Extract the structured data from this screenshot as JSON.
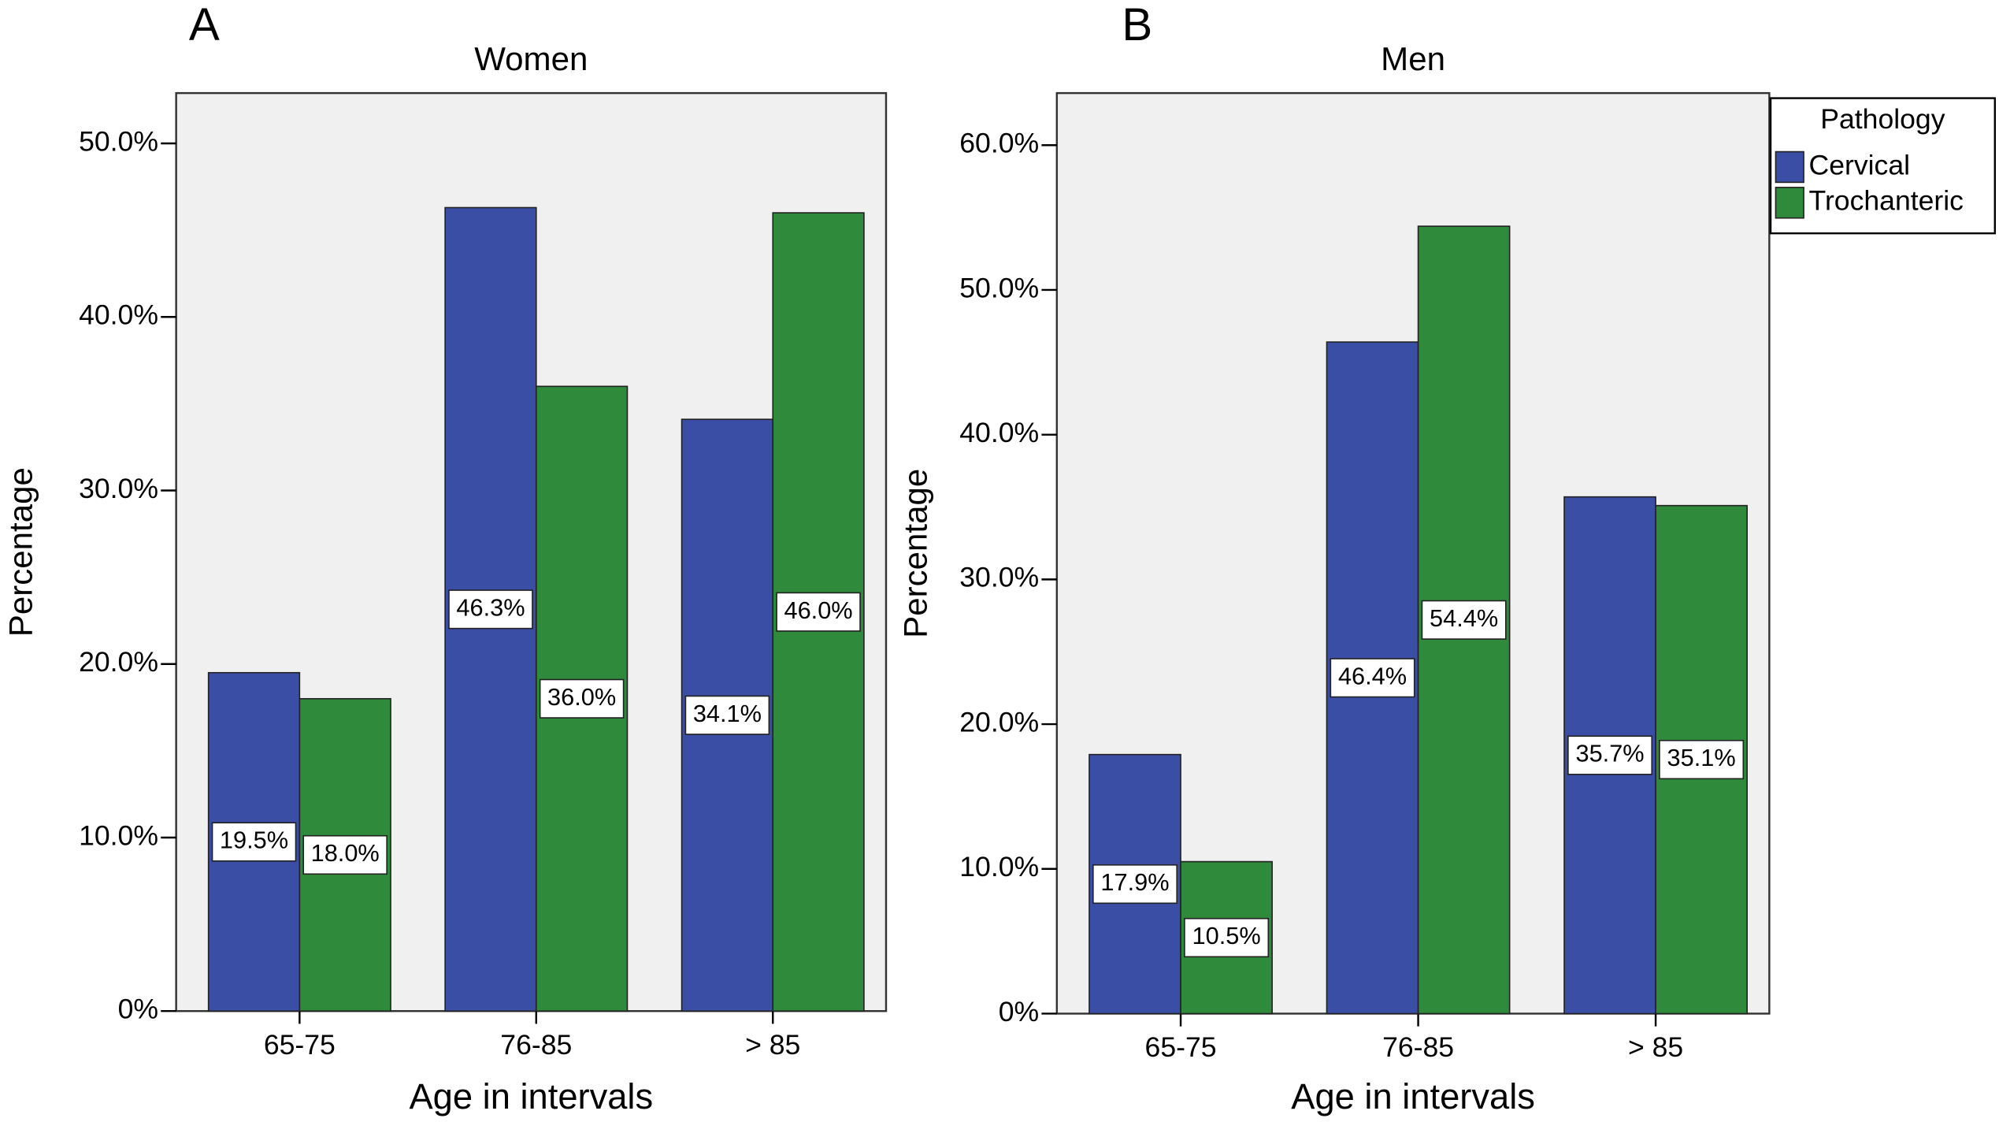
{
  "chart_data": [
    {
      "type": "bar",
      "panel": "A",
      "title": "Women",
      "xlabel": "Age in intervals",
      "ylabel": "Percentage",
      "categories": [
        "65-75",
        "76-85",
        "> 85"
      ],
      "series": [
        {
          "color": "#3b4ea6",
          "values": [
            19.5,
            46.3,
            34.1
          ],
          "value_labels": [
            "19.5%",
            "46.3%",
            "34.1%"
          ]
        },
        {
          "color": "#2f8b3b",
          "values": [
            18.0,
            36.0,
            46.0
          ],
          "value_labels": [
            "18.0%",
            "36.0%",
            "46.0%"
          ]
        }
      ],
      "ylim": [
        0,
        52.9
      ],
      "yticks": [
        {
          "value": 0,
          "label": "0%"
        },
        {
          "value": 10,
          "label": "10.0%"
        },
        {
          "value": 20,
          "label": "20.0%"
        },
        {
          "value": 30,
          "label": "30.0%"
        },
        {
          "value": 40,
          "label": "40.0%"
        },
        {
          "value": 50,
          "label": "50.0%"
        }
      ]
    },
    {
      "type": "bar",
      "panel": "B",
      "title": "Men",
      "xlabel": "Age in intervals",
      "ylabel": "Percentage",
      "categories": [
        "65-75",
        "76-85",
        "> 85"
      ],
      "legend": {
        "title": "Pathology",
        "position": "right"
      },
      "series": [
        {
          "name": "Cervical",
          "color": "#3b4ea6",
          "values": [
            17.9,
            46.4,
            35.7
          ],
          "value_labels": [
            "17.9%",
            "46.4%",
            "35.7%"
          ]
        },
        {
          "name": "Trochanteric",
          "color": "#2f8b3b",
          "values": [
            10.5,
            54.4,
            35.1
          ],
          "value_labels": [
            "10.5%",
            "54.4%",
            "35.1%"
          ]
        }
      ],
      "ylim": [
        0,
        63.6
      ],
      "yticks": [
        {
          "value": 0,
          "label": "0%"
        },
        {
          "value": 10,
          "label": "10.0%"
        },
        {
          "value": 20,
          "label": "20.0%"
        },
        {
          "value": 30,
          "label": "30.0%"
        },
        {
          "value": 40,
          "label": "40.0%"
        },
        {
          "value": 50,
          "label": "50.0%"
        },
        {
          "value": 60,
          "label": "60.0%"
        }
      ]
    }
  ]
}
